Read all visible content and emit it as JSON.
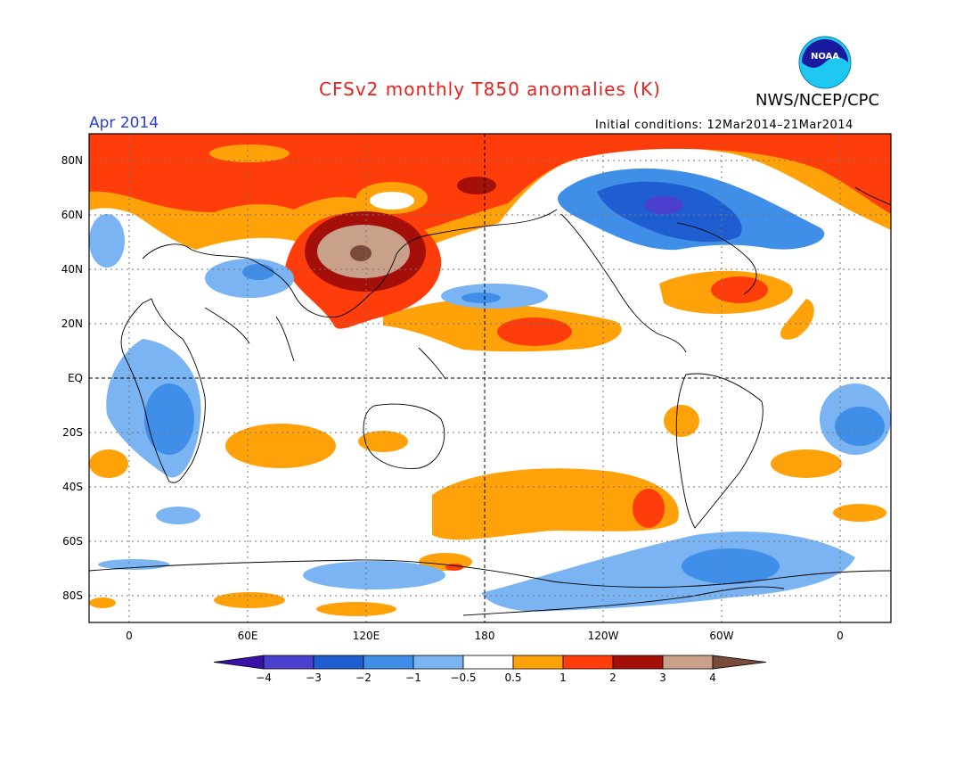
{
  "header": {
    "title": "CFSv2 monthly T850 anomalies (K)",
    "organization": "NWS/NCEP/CPC",
    "month": "Apr 2014",
    "initial_conditions": "Initial conditions: 12Mar2014–21Mar2014",
    "logo_text": "NOAA"
  },
  "axes": {
    "lat_labels": [
      "80N",
      "60N",
      "40N",
      "20N",
      "EQ",
      "20S",
      "40S",
      "60S",
      "80S"
    ],
    "lon_labels": [
      "0",
      "60E",
      "120E",
      "180",
      "120W",
      "60W",
      "0"
    ]
  },
  "legend": {
    "tick_labels": [
      "−4",
      "−3",
      "−2",
      "−1",
      "−0.5",
      "0.5",
      "1",
      "2",
      "3",
      "4"
    ],
    "colors": [
      "#3a12a8",
      "#4b3fcf",
      "#1f5ed0",
      "#3f8ee8",
      "#7ab4f2",
      "#ffffff",
      "#ffa108",
      "#ff3d0a",
      "#a50f0a",
      "#c9a08a",
      "#7a4a3a"
    ]
  }
}
